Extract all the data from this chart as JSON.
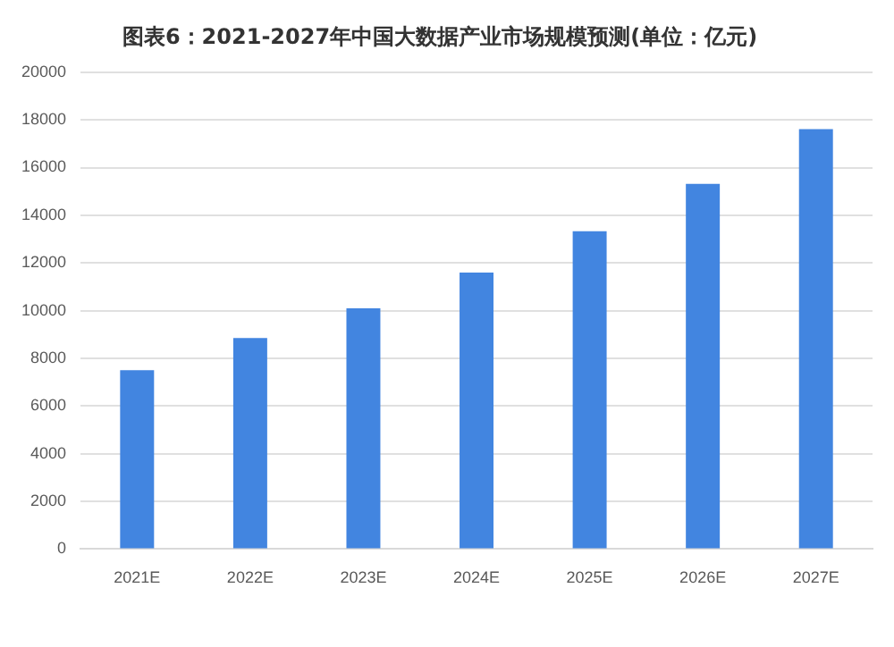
{
  "chart_data": {
    "type": "bar",
    "title": "图表6：2021-2027年中国大数据产业市场规模预测(单位：亿元)",
    "categories": [
      "2021E",
      "2022E",
      "2023E",
      "2024E",
      "2025E",
      "2026E",
      "2027E"
    ],
    "values": [
      7500,
      8850,
      10100,
      11600,
      13330,
      15320,
      17610
    ],
    "color": "#4285e0",
    "ylim": [
      0,
      20000
    ],
    "yticks": [
      0,
      2000,
      4000,
      6000,
      8000,
      10000,
      12000,
      14000,
      16000,
      18000,
      20000
    ],
    "grid": "y",
    "legend": false
  }
}
